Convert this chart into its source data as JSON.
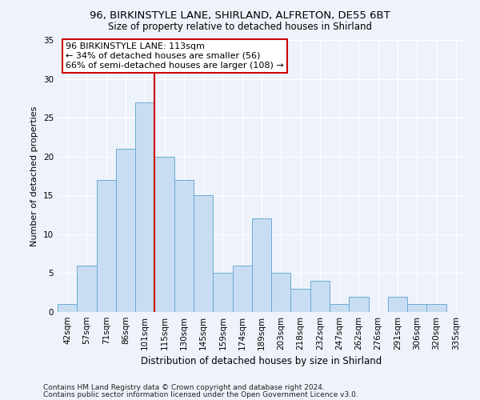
{
  "title1": "96, BIRKINSTYLE LANE, SHIRLAND, ALFRETON, DE55 6BT",
  "title2": "Size of property relative to detached houses in Shirland",
  "xlabel": "Distribution of detached houses by size in Shirland",
  "ylabel": "Number of detached properties",
  "categories": [
    "42sqm",
    "57sqm",
    "71sqm",
    "86sqm",
    "101sqm",
    "115sqm",
    "130sqm",
    "145sqm",
    "159sqm",
    "174sqm",
    "189sqm",
    "203sqm",
    "218sqm",
    "232sqm",
    "247sqm",
    "262sqm",
    "276sqm",
    "291sqm",
    "306sqm",
    "320sqm",
    "335sqm"
  ],
  "values": [
    1,
    6,
    17,
    21,
    27,
    20,
    17,
    15,
    5,
    6,
    12,
    5,
    3,
    4,
    1,
    2,
    0,
    2,
    1,
    1,
    0
  ],
  "bar_color": "#c9ddf2",
  "bar_edge_color": "#6aaad4",
  "vline_x": 5,
  "vline_color": "#cc0000",
  "annotation_text": "96 BIRKINSTYLE LANE: 113sqm\n← 34% of detached houses are smaller (56)\n66% of semi-detached houses are larger (108) →",
  "annotation_box_color": "#ffffff",
  "annotation_box_edge_color": "#cc0000",
  "ylim": [
    0,
    35
  ],
  "yticks": [
    0,
    5,
    10,
    15,
    20,
    25,
    30,
    35
  ],
  "footer1": "Contains HM Land Registry data © Crown copyright and database right 2024.",
  "footer2": "Contains public sector information licensed under the Open Government Licence v3.0.",
  "background_color": "#eef2fa",
  "grid_color": "#ffffff",
  "title1_fontsize": 9.5,
  "title2_fontsize": 8.5,
  "xlabel_fontsize": 8.5,
  "ylabel_fontsize": 8,
  "tick_fontsize": 7.5,
  "annotation_fontsize": 8,
  "footer_fontsize": 6.5
}
